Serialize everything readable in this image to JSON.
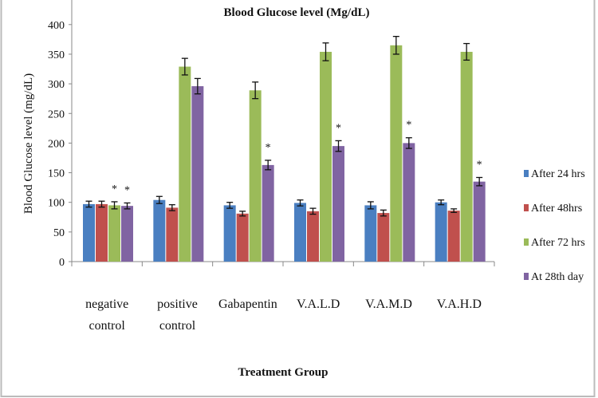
{
  "chart_data": {
    "type": "bar",
    "title": "Blood Glucose level (Mg/dL)",
    "xlabel": "Treatment Group",
    "ylabel": "Blood Glucose  level (mg/dL)",
    "ylim": [
      0,
      450
    ],
    "yticks": [
      "0",
      "50",
      "100",
      "150",
      "200",
      "250",
      "300",
      "350",
      "400",
      "450"
    ],
    "grid": false,
    "legend_position": "right",
    "categories": [
      [
        "negative",
        "control"
      ],
      [
        "positive",
        "control"
      ],
      [
        "Gabapentin"
      ],
      [
        "V.A.L.D"
      ],
      [
        "V.A.M.D"
      ],
      [
        "V.A.H.D"
      ]
    ],
    "series": [
      {
        "name": "After 24 hrs",
        "color": "#4a7fc1",
        "values": [
          97,
          104,
          95,
          99,
          95,
          100
        ],
        "errors": [
          5,
          6,
          5,
          5,
          6,
          4
        ]
      },
      {
        "name": "After 48hrs",
        "color": "#c0504d",
        "values": [
          97,
          91,
          81,
          85,
          82,
          86
        ],
        "errors": [
          5,
          5,
          4,
          5,
          5,
          3
        ]
      },
      {
        "name": "After 72 hrs",
        "color": "#9bbb59",
        "values": [
          95,
          329,
          289,
          354,
          365,
          354
        ],
        "errors": [
          6,
          14,
          14,
          15,
          15,
          14
        ]
      },
      {
        "name": "At 28th day",
        "color": "#8064a2",
        "values": [
          94,
          296,
          163,
          195,
          200,
          135
        ],
        "errors": [
          5,
          13,
          8,
          9,
          9,
          7
        ]
      }
    ],
    "significance_marker": "*",
    "significant": [
      [
        0,
        2
      ],
      [
        0,
        3
      ],
      [
        2,
        3
      ],
      [
        3,
        3
      ],
      [
        4,
        3
      ],
      [
        5,
        3
      ]
    ]
  }
}
